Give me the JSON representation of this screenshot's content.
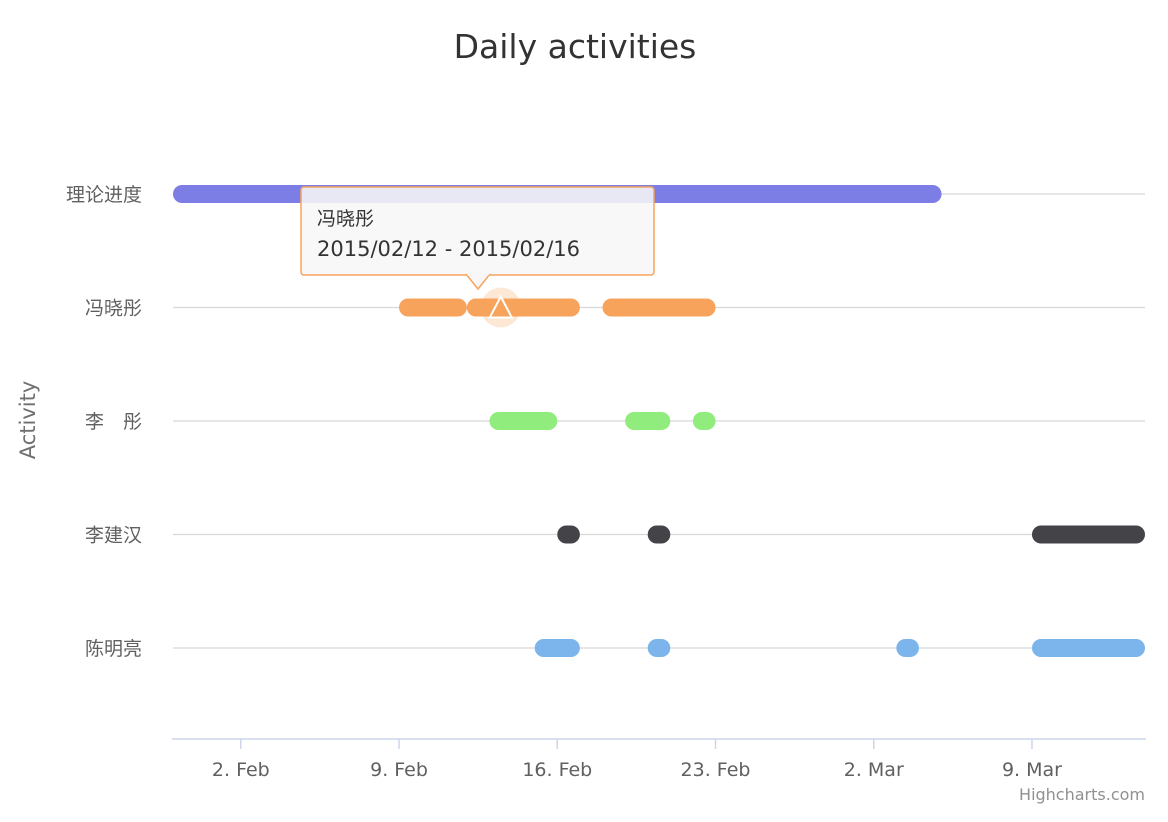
{
  "chart_data": {
    "type": "xrange",
    "title": "Daily activities",
    "ylabel": "Activity",
    "xlabel": "",
    "x_ticks": [
      "2. Feb",
      "9. Feb",
      "16. Feb",
      "23. Feb",
      "2. Mar",
      "9. Mar"
    ],
    "x_tick_dates": [
      "2015-02-02",
      "2015-02-09",
      "2015-02-16",
      "2015-02-23",
      "2015-03-02",
      "2015-03-09"
    ],
    "xlim": [
      "2015-01-30",
      "2015-03-14"
    ],
    "grid": true,
    "categories": [
      "理论进度",
      "冯晓彤",
      "李　彤",
      "李建汉",
      "陈明亮"
    ],
    "series": [
      {
        "category": "理论进度",
        "color": "#7d7de6",
        "ranges": [
          [
            "2015-01-30",
            "2015-03-04"
          ]
        ]
      },
      {
        "category": "冯晓彤",
        "color": "#f7a35c",
        "ranges": [
          [
            "2015-02-09",
            "2015-02-11"
          ],
          [
            "2015-02-12",
            "2015-02-16"
          ],
          [
            "2015-02-18",
            "2015-02-22"
          ]
        ]
      },
      {
        "category": "李　彤",
        "color": "#90ed7d",
        "ranges": [
          [
            "2015-02-13",
            "2015-02-15"
          ],
          [
            "2015-02-19",
            "2015-02-20"
          ],
          [
            "2015-02-22",
            "2015-02-22"
          ]
        ]
      },
      {
        "category": "李建汉",
        "color": "#434348",
        "ranges": [
          [
            "2015-02-16",
            "2015-02-16"
          ],
          [
            "2015-02-20",
            "2015-02-20"
          ],
          [
            "2015-03-09",
            "2015-03-14"
          ]
        ]
      },
      {
        "category": "陈明亮",
        "color": "#7cb5ec",
        "ranges": [
          [
            "2015-02-15",
            "2015-02-16"
          ],
          [
            "2015-02-20",
            "2015-02-20"
          ],
          [
            "2015-03-03",
            "2015-03-03"
          ],
          [
            "2015-03-09",
            "2015-03-14"
          ]
        ]
      }
    ],
    "tooltip": {
      "title": "冯晓彤",
      "text": "2015/02/12 - 2015/02/16",
      "border_color": "#f7a35c",
      "hovered_category": "冯晓彤",
      "hovered_date": "2015-02-13"
    },
    "credits": "Highcharts.com"
  }
}
